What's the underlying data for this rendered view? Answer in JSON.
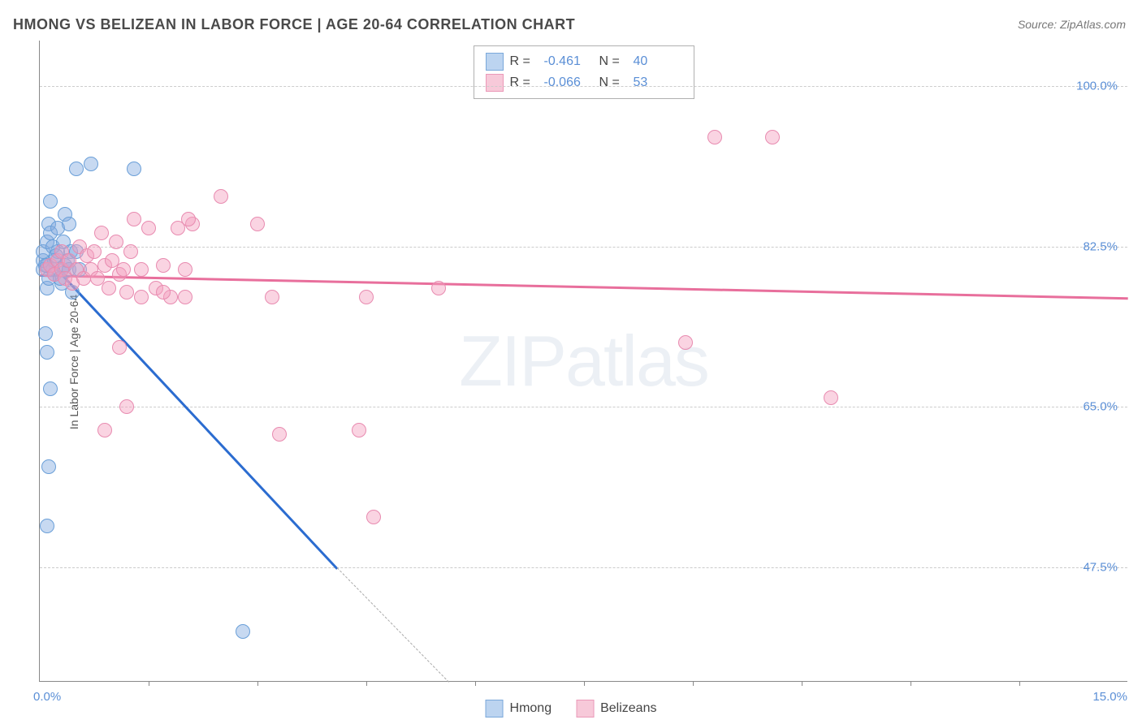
{
  "title": "HMONG VS BELIZEAN IN LABOR FORCE | AGE 20-64 CORRELATION CHART",
  "source": "Source: ZipAtlas.com",
  "y_axis_label": "In Labor Force | Age 20-64",
  "watermark": "ZIPatlas",
  "chart": {
    "type": "scatter",
    "xlim": [
      0.0,
      15.0
    ],
    "ylim": [
      35.0,
      105.0
    ],
    "x_tick_positions": [
      1.5,
      3.0,
      4.5,
      6.0,
      7.5,
      9.0,
      10.5,
      12.0,
      13.5
    ],
    "y_gridlines": [
      47.5,
      65.0,
      82.5,
      100.0
    ],
    "y_tick_labels": [
      "47.5%",
      "65.0%",
      "82.5%",
      "100.0%"
    ],
    "x_min_label": "0.0%",
    "x_max_label": "15.0%",
    "background_color": "#ffffff",
    "grid_color": "#cccccc",
    "axis_color": "#888888",
    "series": [
      {
        "name": "Hmong",
        "color_fill": "rgba(130,170,225,0.45)",
        "color_stroke": "#6a9fd8",
        "swatch_fill": "#bcd4f0",
        "swatch_stroke": "#7aa8da",
        "marker_radius": 9,
        "trend_color": "#2b6cd0",
        "trend": {
          "x1": 0.2,
          "y1": 80.5,
          "x2": 4.1,
          "y2": 47.5,
          "dash_x2": 7.0,
          "dash_y2": 24.0
        },
        "R": "-0.461",
        "N": "40",
        "points": [
          [
            0.05,
            80
          ],
          [
            0.05,
            81
          ],
          [
            0.05,
            82
          ],
          [
            0.1,
            80.5
          ],
          [
            0.1,
            78
          ],
          [
            0.1,
            83
          ],
          [
            0.12,
            85
          ],
          [
            0.15,
            84
          ],
          [
            0.15,
            87.5
          ],
          [
            0.18,
            80
          ],
          [
            0.2,
            79.5
          ],
          [
            0.2,
            81
          ],
          [
            0.25,
            82
          ],
          [
            0.25,
            84.5
          ],
          [
            0.3,
            80
          ],
          [
            0.3,
            78.5
          ],
          [
            0.35,
            80.5
          ],
          [
            0.35,
            86
          ],
          [
            0.4,
            80
          ],
          [
            0.45,
            77.5
          ],
          [
            0.08,
            73
          ],
          [
            0.1,
            71
          ],
          [
            0.15,
            67
          ],
          [
            0.12,
            58.5
          ],
          [
            0.1,
            52
          ],
          [
            0.5,
            91
          ],
          [
            0.55,
            80
          ],
          [
            0.4,
            85
          ],
          [
            0.7,
            91.5
          ],
          [
            1.3,
            91
          ],
          [
            2.8,
            40.5
          ],
          [
            0.12,
            79
          ],
          [
            0.18,
            82.5
          ],
          [
            0.22,
            81.5
          ],
          [
            0.28,
            79
          ],
          [
            0.32,
            83
          ],
          [
            0.38,
            81
          ],
          [
            0.42,
            82
          ],
          [
            0.5,
            82
          ],
          [
            0.08,
            80.5
          ]
        ]
      },
      {
        "name": "Belizeans",
        "color_fill": "rgba(245,160,190,0.45)",
        "color_stroke": "#e88bb0",
        "swatch_fill": "#f7c9d9",
        "swatch_stroke": "#eb99b8",
        "marker_radius": 9,
        "trend_color": "#e86f9c",
        "trend": {
          "x1": 0.0,
          "y1": 79.5,
          "x2": 15.0,
          "y2": 77.0
        },
        "R": "-0.066",
        "N": "53",
        "points": [
          [
            0.1,
            80
          ],
          [
            0.15,
            80.5
          ],
          [
            0.2,
            79.5
          ],
          [
            0.25,
            81
          ],
          [
            0.3,
            80
          ],
          [
            0.3,
            82
          ],
          [
            0.35,
            79
          ],
          [
            0.4,
            81
          ],
          [
            0.45,
            78.5
          ],
          [
            0.5,
            80
          ],
          [
            0.55,
            82.5
          ],
          [
            0.6,
            79
          ],
          [
            0.65,
            81.5
          ],
          [
            0.7,
            80
          ],
          [
            0.75,
            82
          ],
          [
            0.8,
            79
          ],
          [
            0.85,
            84
          ],
          [
            0.9,
            80.5
          ],
          [
            0.95,
            78
          ],
          [
            1.0,
            81
          ],
          [
            1.05,
            83
          ],
          [
            1.1,
            79.5
          ],
          [
            1.15,
            80
          ],
          [
            1.2,
            77.5
          ],
          [
            1.25,
            82
          ],
          [
            1.3,
            85.5
          ],
          [
            1.4,
            80
          ],
          [
            1.5,
            84.5
          ],
          [
            1.6,
            78
          ],
          [
            1.7,
            80.5
          ],
          [
            1.8,
            77
          ],
          [
            1.9,
            84.5
          ],
          [
            2.0,
            80
          ],
          [
            2.1,
            85
          ],
          [
            2.05,
            85.5
          ],
          [
            1.1,
            71.5
          ],
          [
            1.4,
            77
          ],
          [
            1.7,
            77.5
          ],
          [
            2.0,
            77
          ],
          [
            1.2,
            65
          ],
          [
            0.9,
            62.5
          ],
          [
            2.5,
            88
          ],
          [
            3.0,
            85
          ],
          [
            3.2,
            77
          ],
          [
            3.3,
            62
          ],
          [
            4.4,
            62.5
          ],
          [
            4.5,
            77
          ],
          [
            4.6,
            53
          ],
          [
            5.5,
            78
          ],
          [
            8.9,
            72
          ],
          [
            9.3,
            94.5
          ],
          [
            10.1,
            94.5
          ],
          [
            10.9,
            66
          ]
        ]
      }
    ]
  },
  "legend_top": {
    "labels": {
      "R": "R =",
      "N": "N ="
    }
  },
  "legend_bottom": [
    {
      "label": "Hmong",
      "series_index": 0
    },
    {
      "label": "Belizeans",
      "series_index": 1
    }
  ]
}
